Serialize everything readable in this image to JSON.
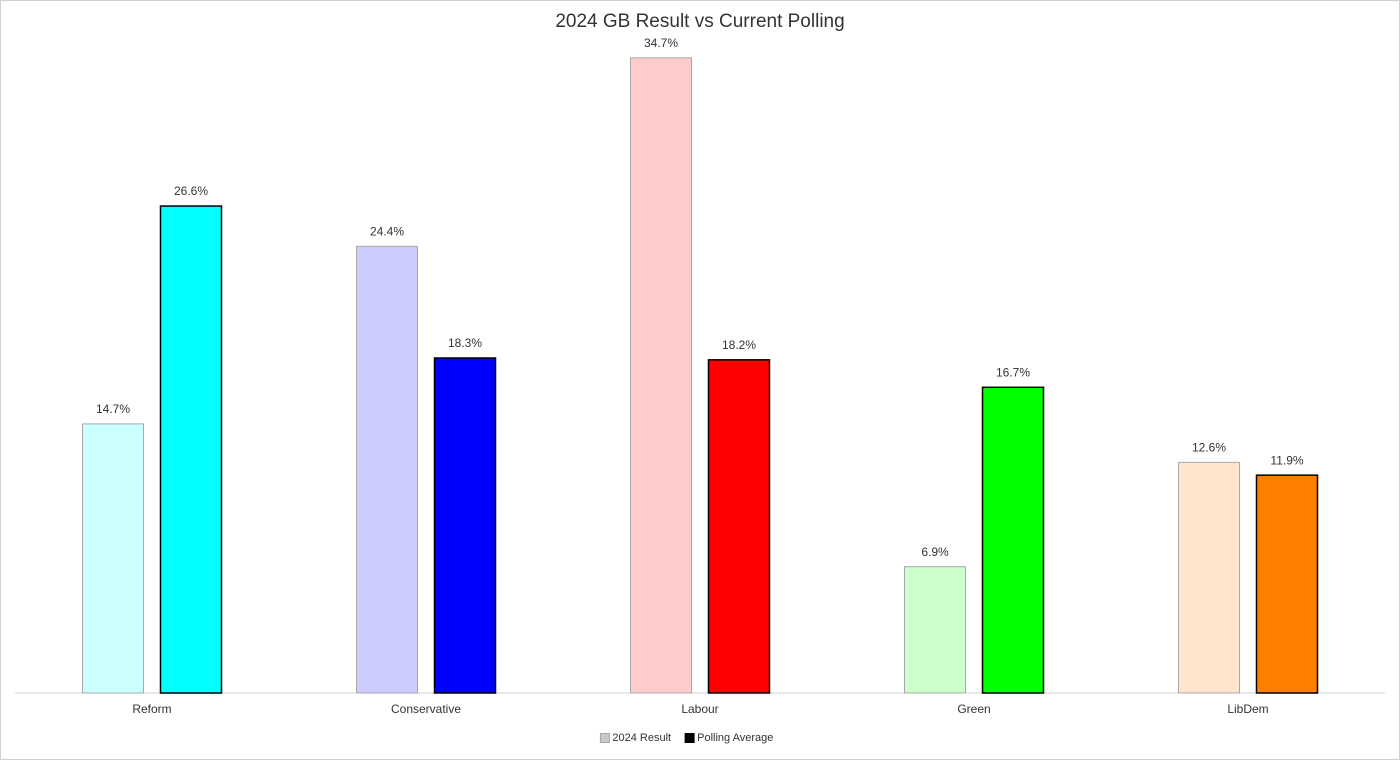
{
  "chart_data": {
    "type": "bar",
    "title": "2024 GB Result vs Current Polling",
    "categories": [
      "Reform",
      "Conservative",
      "Labour",
      "Green",
      "LibDem"
    ],
    "series": [
      {
        "name": "2024 Result",
        "color": "#c8c8c8",
        "edgecolor": "#a8a8a8",
        "point_colors": [
          "#ccffff",
          "#ccccff",
          "#ffcccc",
          "#ccffcc",
          "#ffe5cc"
        ],
        "values": [
          14.7,
          24.4,
          34.7,
          6.9,
          12.6
        ],
        "value_labels": [
          "14.7%",
          "24.4%",
          "34.7%",
          "6.9%",
          "12.6%"
        ]
      },
      {
        "name": "Polling Average",
        "color": "#000000",
        "edgecolor": "#000000",
        "point_colors": [
          "#00ffff",
          "#0000ff",
          "#ff0000",
          "#00ff00",
          "#ff8000"
        ],
        "values": [
          26.6,
          18.3,
          18.2,
          16.7,
          11.9
        ],
        "value_labels": [
          "26.6%",
          "18.3%",
          "18.2%",
          "16.7%",
          "11.9%"
        ]
      }
    ],
    "ylim": [
      0,
      36
    ],
    "grid": false,
    "legend": "bottom"
  }
}
